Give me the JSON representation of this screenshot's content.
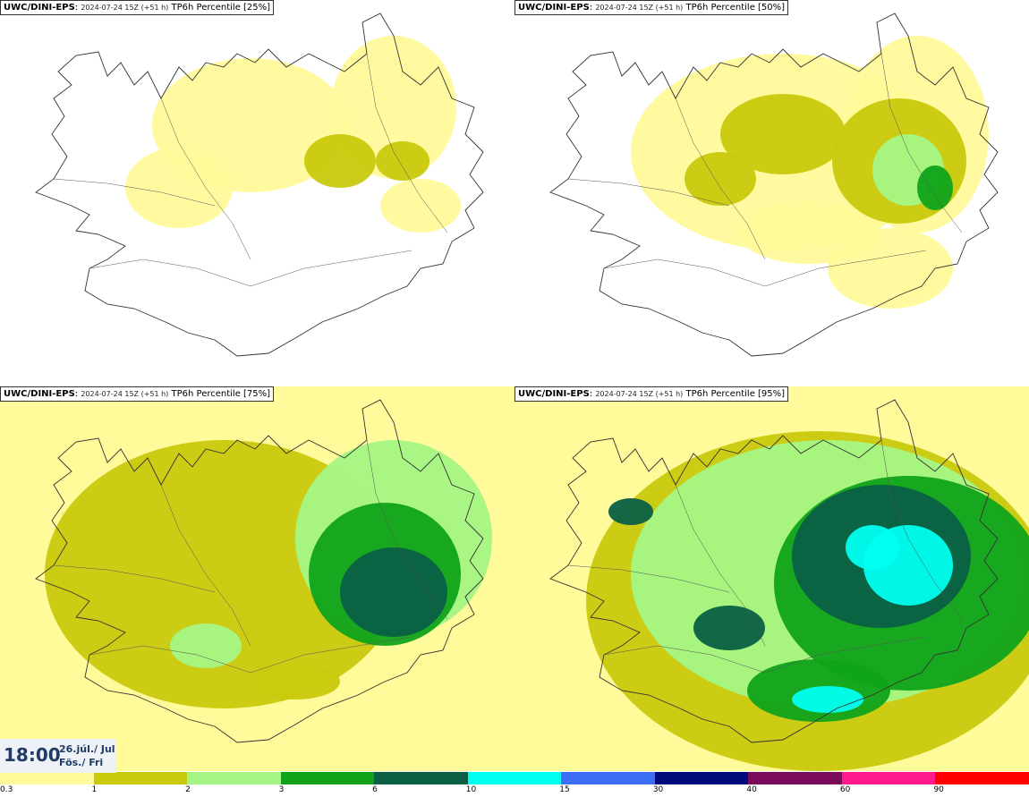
{
  "panels": [
    {
      "model": "UWC/DINI-EPS",
      "run": "2024-07-24 15Z (+51 h)",
      "product": "TP6h Percentile [25%]",
      "level": 1
    },
    {
      "model": "UWC/DINI-EPS",
      "run": "2024-07-24 15Z (+51 h)",
      "product": "TP6h Percentile [50%]",
      "level": 2
    },
    {
      "model": "UWC/DINI-EPS",
      "run": "2024-07-24 15Z (+51 h)",
      "product": "TP6h Percentile [75%]",
      "level": 3
    },
    {
      "model": "UWC/DINI-EPS",
      "run": "2024-07-24 15Z (+51 h)",
      "product": "TP6h Percentile [95%]",
      "level": 4
    }
  ],
  "valid_time": {
    "time": "18:00",
    "date_line1": "26.júl./ Jul",
    "date_line2": "Fös./ Fri"
  },
  "legend": {
    "labels": [
      "0.3",
      "1",
      "2",
      "3",
      "6",
      "10",
      "15",
      "30",
      "40",
      "60",
      "90"
    ],
    "colors": [
      "#fffa9a",
      "#c9c90e",
      "#a4f584",
      "#10a31a",
      "#0a5f44",
      "#00fff0",
      "#3d6ef5",
      "#000a7a",
      "#7a0a5a",
      "#ff1a8c",
      "#ff0000"
    ]
  },
  "colors": {
    "coast": "#333333",
    "map_bg": "#ffffff"
  }
}
